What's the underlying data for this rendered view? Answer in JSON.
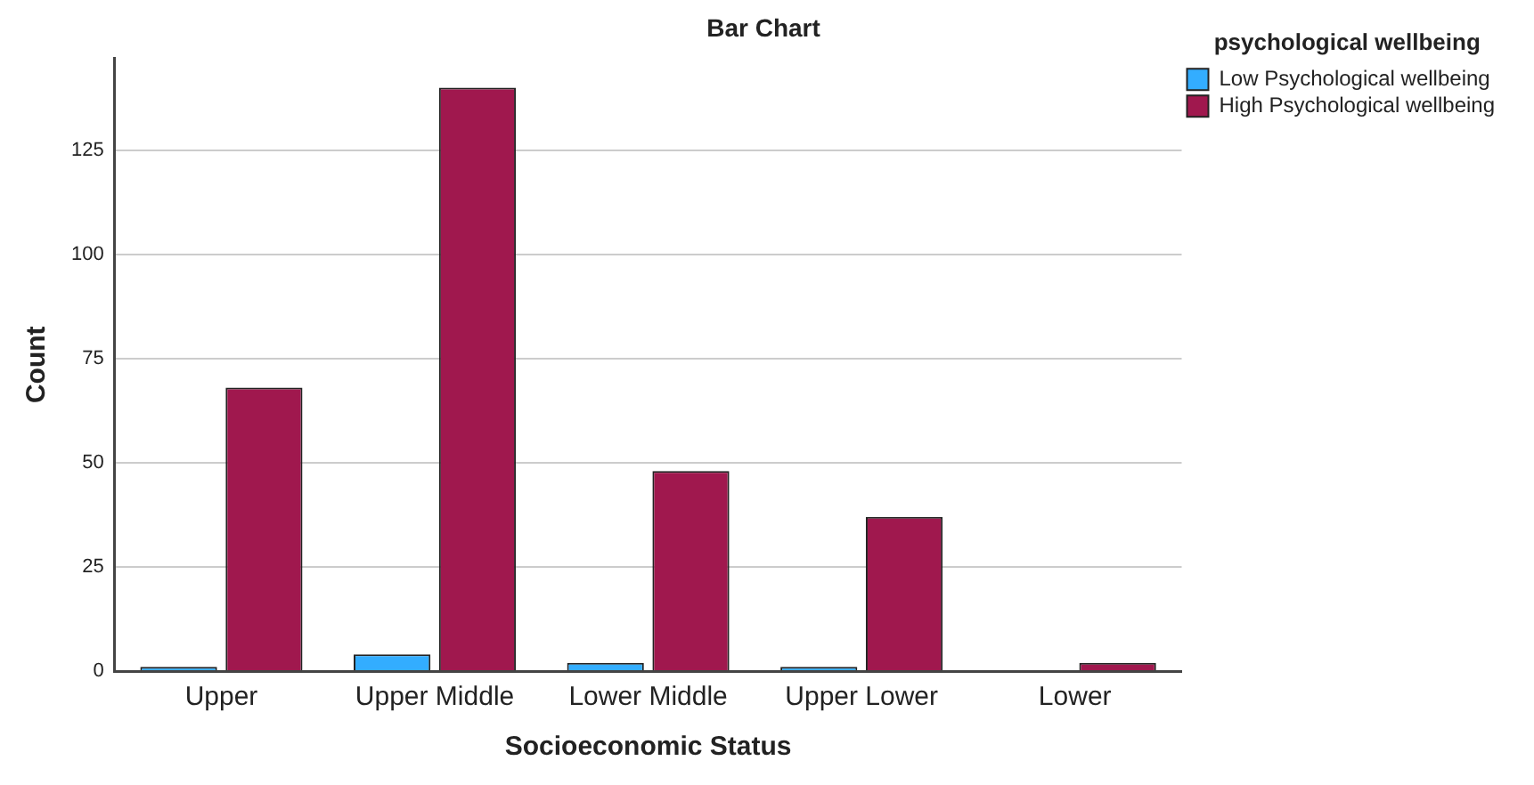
{
  "chart_data": {
    "type": "bar",
    "title": "Bar Chart",
    "xlabel": "Socioeconomic Status",
    "ylabel": "Count",
    "legend_title": "psychological wellbeing",
    "categories": [
      "Upper",
      "Upper Middle",
      "Lower Middle",
      "Upper Lower",
      "Lower"
    ],
    "series": [
      {
        "name": "Low Psychological wellbeing",
        "color": "#33adff",
        "values": [
          1,
          4,
          2,
          1,
          null
        ]
      },
      {
        "name": "High Psychological wellbeing",
        "color": "#a0184e",
        "values": [
          68,
          140,
          48,
          37,
          2
        ]
      }
    ],
    "ylim": [
      0,
      147
    ],
    "yticks": [
      0,
      25,
      50,
      75,
      100,
      125
    ],
    "grid": "y",
    "legend": "top right"
  }
}
